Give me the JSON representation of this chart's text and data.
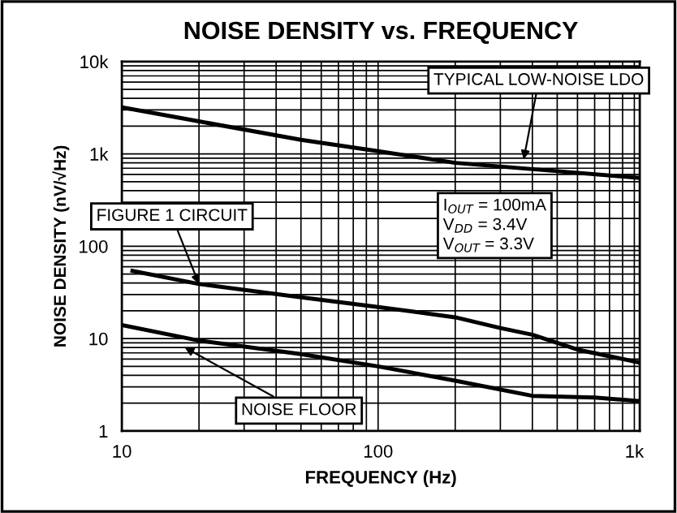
{
  "chart_data": {
    "type": "line",
    "title": "NOISE DENSITY vs. FREQUENCY",
    "xlabel": "FREQUENCY (Hz)",
    "ylabel": "NOISE DENSITY (nV/√Hz)",
    "log": "xy",
    "xlim": [
      10,
      1050
    ],
    "ylim": [
      1,
      10000
    ],
    "xticks": [
      10,
      100,
      {
        "value": 1000,
        "label": "1k"
      }
    ],
    "yticks": [
      1,
      10,
      100,
      {
        "value": 1000,
        "label": "1k"
      },
      {
        "value": 10000,
        "label": "10k"
      }
    ],
    "grid": true,
    "legend": false,
    "marker": "none",
    "line_style": "solid",
    "series": [
      {
        "color": "#000000",
        "x": [
          10,
          20,
          50,
          100,
          200,
          500,
          1050
        ],
        "values": [
          3200,
          2250,
          1420,
          1070,
          800,
          650,
          550
        ]
      },
      {
        "color": "#000000",
        "x": [
          11,
          20,
          50,
          100,
          200,
          300,
          400,
          600,
          1050
        ],
        "values": [
          54,
          39,
          28,
          22,
          17,
          13,
          11,
          7.6,
          5.5
        ]
      },
      {
        "color": "#000000",
        "x": [
          10,
          20,
          50,
          100,
          200,
          400,
          700,
          1050
        ],
        "values": [
          14,
          9.5,
          6.8,
          5.0,
          3.5,
          2.4,
          2.3,
          2.1
        ]
      }
    ],
    "annotations": [
      {
        "text": "TYPICAL LOW-NOISE LDO",
        "x": 370,
        "y": 870
      },
      {
        "text": "FIGURE 1 CIRCUIT",
        "x": 20,
        "y": 39
      },
      {
        "text": "NOISE FLOOR",
        "x": 17.6,
        "y": 8
      },
      "I$_{OUT}$ = 100mA\nV$_{DD}$ = 3.4V\nV$_{OUT}$ = 3.3V"
    ]
  }
}
